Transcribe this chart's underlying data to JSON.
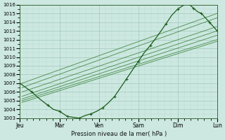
{
  "xlabel": "Pression niveau de la mer( hPa )",
  "ylim": [
    1003,
    1016
  ],
  "yticks": [
    1003,
    1004,
    1005,
    1006,
    1007,
    1008,
    1009,
    1010,
    1011,
    1012,
    1013,
    1014,
    1015,
    1016
  ],
  "xtick_labels": [
    "Jeu",
    "Mar",
    "Ven",
    "Sam",
    "Dim",
    "Lun"
  ],
  "xtick_positions": [
    0,
    1,
    2,
    3,
    4,
    5
  ],
  "bg_color": "#cce8e0",
  "grid_major_color": "#9abfb5",
  "grid_minor_color": "#b8d8d0",
  "line_color": "#1a5c1a",
  "line_color_thin": "#2e7a2e",
  "main_x": [
    0,
    0.15,
    0.3,
    0.5,
    0.7,
    0.85,
    1.0,
    1.1,
    1.2,
    1.35,
    1.5,
    1.65,
    1.8,
    1.95,
    2.1,
    2.25,
    2.4,
    2.55,
    2.7,
    2.85,
    3.0,
    3.15,
    3.3,
    3.5,
    3.7,
    3.85,
    4.0,
    4.1,
    4.2,
    4.3,
    4.4,
    4.5,
    4.6,
    4.7,
    4.8,
    4.9,
    5.0
  ],
  "main_y": [
    1007,
    1006.5,
    1006,
    1005.2,
    1004.5,
    1004.0,
    1003.8,
    1003.5,
    1003.2,
    1003.1,
    1003.0,
    1003.3,
    1003.5,
    1003.8,
    1004.2,
    1004.8,
    1005.5,
    1006.5,
    1007.5,
    1008.5,
    1009.5,
    1010.5,
    1011.3,
    1012.5,
    1013.8,
    1014.8,
    1015.5,
    1015.8,
    1016.1,
    1016.0,
    1015.6,
    1015.2,
    1015.0,
    1014.5,
    1014.0,
    1013.5,
    1013.0
  ],
  "ensemble_lines": [
    {
      "x0": 0.05,
      "y0": 1007.0,
      "x1": 5.0,
      "y1": 1015.0
    },
    {
      "x0": 0.05,
      "y0": 1006.5,
      "x1": 5.0,
      "y1": 1014.5
    },
    {
      "x0": 0.05,
      "y0": 1006.0,
      "x1": 5.0,
      "y1": 1013.5
    },
    {
      "x0": 0.05,
      "y0": 1005.5,
      "x1": 5.0,
      "y1": 1013.0
    },
    {
      "x0": 0.05,
      "y0": 1005.2,
      "x1": 5.0,
      "y1": 1012.5
    },
    {
      "x0": 0.05,
      "y0": 1005.0,
      "x1": 5.0,
      "y1": 1012.0
    },
    {
      "x0": 0.05,
      "y0": 1004.8,
      "x1": 5.0,
      "y1": 1011.8
    }
  ]
}
